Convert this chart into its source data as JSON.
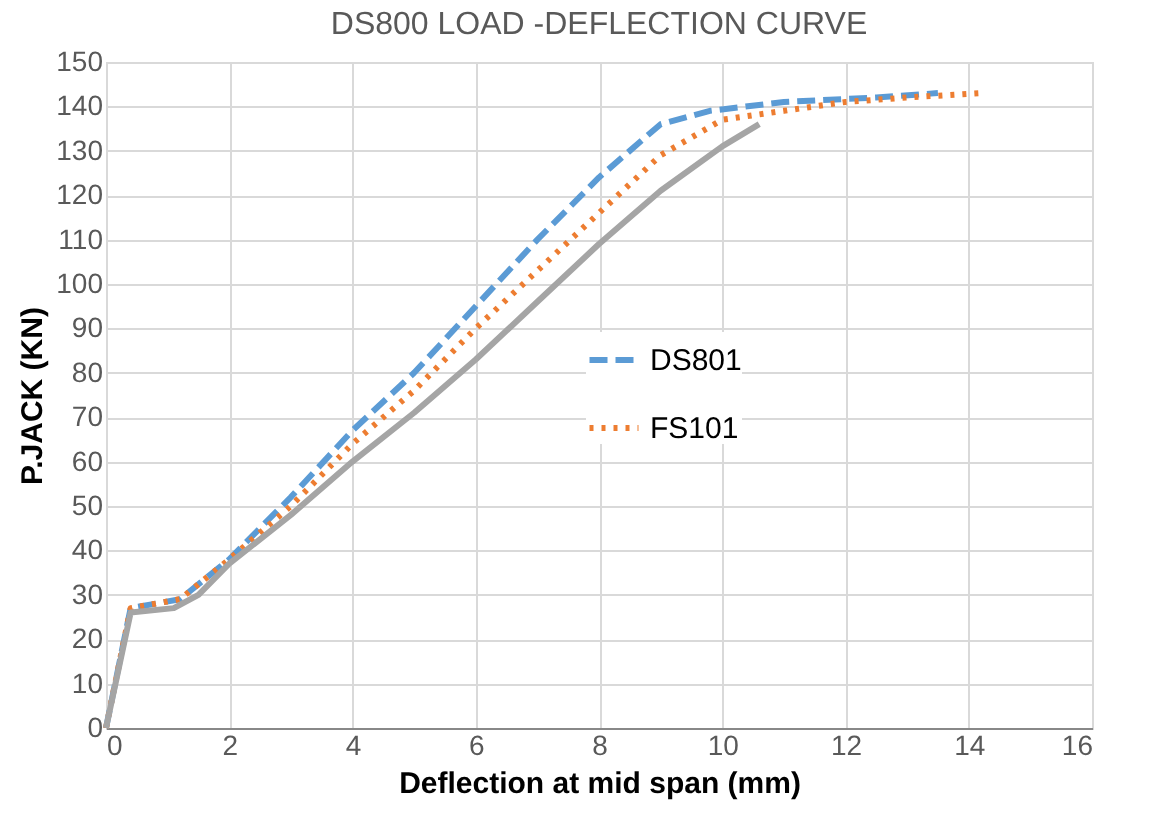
{
  "chart_data": {
    "type": "line",
    "title": "DS800 LOAD -DEFLECTION CURVE",
    "xlabel": "Deflection at mid span (mm)",
    "ylabel": "P.JACK (KN)",
    "xlim": [
      0,
      16
    ],
    "xticks": [
      0,
      2,
      4,
      6,
      8,
      10,
      12,
      14,
      16
    ],
    "ylim": [
      0,
      150
    ],
    "yticks": [
      0,
      10,
      20,
      30,
      40,
      50,
      60,
      70,
      80,
      90,
      100,
      110,
      120,
      130,
      140,
      150
    ],
    "grid": true,
    "legend": "right",
    "series": [
      {
        "name": "DS801",
        "color": "#5b9bd5",
        "line_style": "dashed",
        "x": [
          0,
          0.4,
          1.2,
          2,
          3,
          4,
          5,
          6,
          7,
          8,
          9,
          9.8,
          11,
          12.5,
          13.5
        ],
        "values": [
          0,
          27,
          29,
          38,
          52,
          67,
          80,
          95,
          110,
          124,
          136,
          139,
          141,
          142,
          143
        ]
      },
      {
        "name": "FS101",
        "color": "#ed7d31",
        "line_style": "dotted",
        "x": [
          0,
          0.4,
          1.2,
          2,
          3,
          4,
          5,
          6,
          7,
          8,
          9,
          10,
          11,
          12,
          13,
          14.2
        ],
        "values": [
          0,
          27,
          29,
          38,
          50,
          64,
          76,
          90,
          103,
          116,
          129,
          137,
          139,
          141,
          142,
          143
        ]
      },
      {
        "color": "#a5a5a5",
        "line_style": "solid",
        "x": [
          0,
          0.4,
          1.1,
          1.5,
          2,
          3,
          4,
          5,
          6,
          7,
          8,
          9,
          10,
          10.6
        ],
        "values": [
          0,
          26,
          27,
          30,
          37,
          48,
          60,
          71,
          83,
          96,
          109,
          121,
          131,
          136
        ]
      }
    ]
  }
}
